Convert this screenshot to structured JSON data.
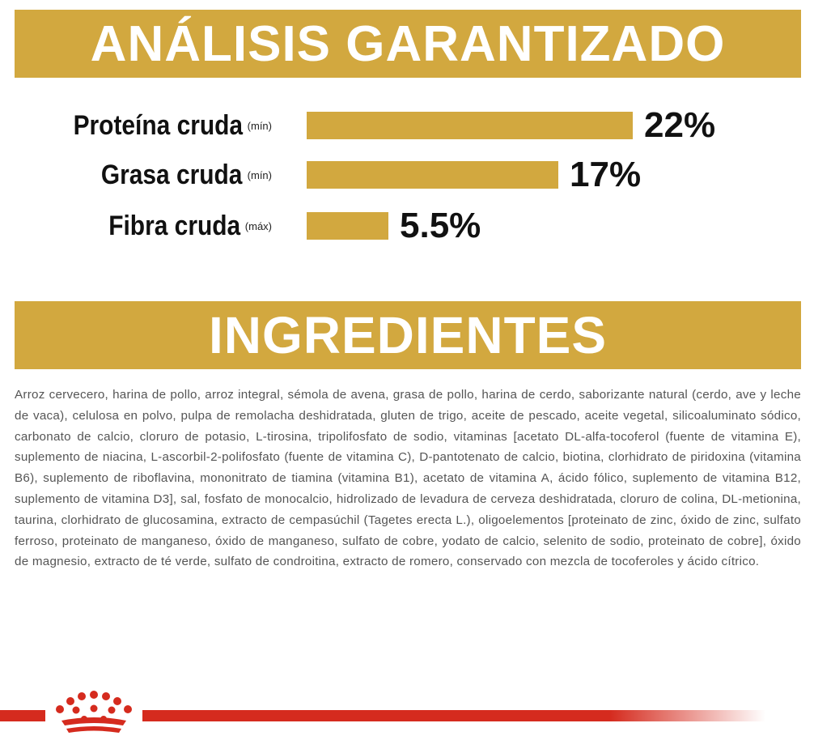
{
  "analysis": {
    "title": "ANÁLISIS GARANTIZADO",
    "rows": [
      {
        "name": "Proteína cruda",
        "qualifier": "(mín)",
        "value": "22%",
        "percent": 22
      },
      {
        "name": "Grasa cruda",
        "qualifier": "(mín)",
        "value": "17%",
        "percent": 17
      },
      {
        "name": "Fibra cruda",
        "qualifier": "(máx)",
        "value": "5.5%",
        "percent": 5.5
      }
    ]
  },
  "ingredients": {
    "title": "INGREDIENTES",
    "text": "Arroz cervecero, harina de pollo, arroz integral, sémola de avena, grasa de pollo, harina de cerdo, saborizante natural (cerdo, ave y leche de vaca), celulosa en polvo, pulpa de remolacha deshidratada, gluten de trigo, aceite de pescado, aceite vegetal, silicoaluminato sódico, carbonato de calcio, cloruro de potasio, L-tirosina, tripolifosfato de sodio, vitaminas [acetato DL-alfa-tocoferol (fuente de vitamina E), suplemento de niacina, L-ascorbil-2-polifosfato (fuente de vitamina C), D-pantotenato de calcio, biotina, clorhidrato de piridoxina (vitamina B6), suplemento de riboflavina, mononitrato de tiamina (vitamina B1), acetato de vitamina A, ácido fólico, suplemento de vitamina B12, suplemento de vitamina D3], sal, fosfato de monocalcio, hidrolizado de levadura de cerveza deshidratada, cloruro de colina, DL-metionina, taurina, clorhidrato de glucosamina, extracto de cempasúchil (Tagetes erecta L.), oligoelementos [proteinato de zinc, óxido de zinc, sulfato ferroso, proteinato de manganeso, óxido de manganeso, sulfato de cobre, yodato de calcio, selenito de sodio, proteinato de cobre], óxido de magnesio, extracto de té verde, sulfato de condroitina, extracto de romero, conservado con mezcla de tocoferoles y ácido cítrico."
  },
  "colors": {
    "gold": "#d2a83f",
    "brand_red": "#d52b1e",
    "text_dark": "#111111",
    "text_body": "#555555"
  },
  "footer": {
    "logo": "royal-canin-crown-icon"
  }
}
